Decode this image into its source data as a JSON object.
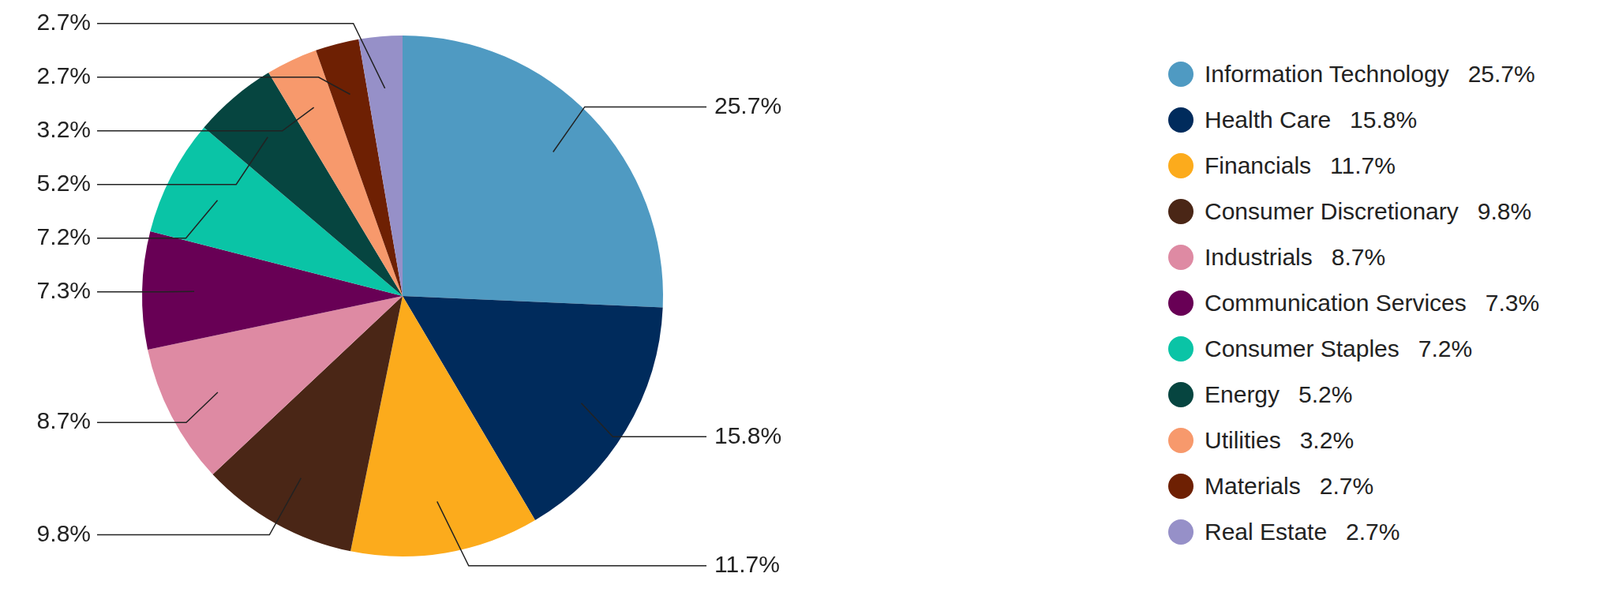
{
  "chart_data": {
    "type": "pie",
    "categories": [
      "Information Technology",
      "Health Care",
      "Financials",
      "Consumer Discretionary",
      "Industrials",
      "Communication Services",
      "Consumer Staples",
      "Energy",
      "Utilities",
      "Materials",
      "Real Estate"
    ],
    "values": [
      25.7,
      15.8,
      11.7,
      9.8,
      8.7,
      7.3,
      7.2,
      5.2,
      3.2,
      2.7,
      2.7
    ],
    "value_labels": [
      "25.7%",
      "15.8%",
      "11.7%",
      "9.8%",
      "8.7%",
      "7.3%",
      "7.2%",
      "5.2%",
      "3.2%",
      "2.7%",
      "2.7%"
    ],
    "colors": [
      "#4f9ac2",
      "#002b5c",
      "#fcab1c",
      "#4a2616",
      "#de8aa3",
      "#680055",
      "#0ac4a6",
      "#064540",
      "#f7996c",
      "#6e2003",
      "#9690c8"
    ],
    "legend": "right",
    "data_labels": true
  }
}
